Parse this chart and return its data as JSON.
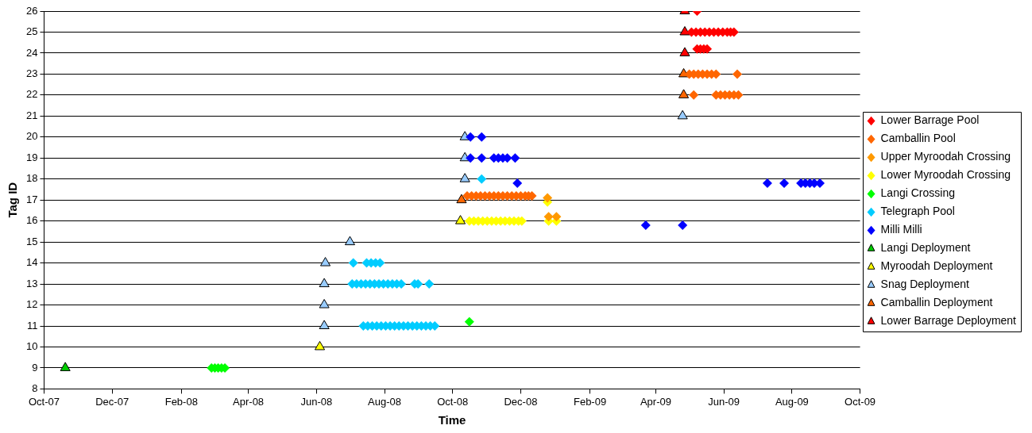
{
  "chart_data": {
    "type": "scatter",
    "xlabel": "Time",
    "ylabel": "Tag ID",
    "xlim": [
      "2007-10-01",
      "2009-10-01"
    ],
    "xticks": [
      {
        "value": "2007-10-01",
        "label": "Oct-07"
      },
      {
        "value": "2007-12-01",
        "label": "Dec-07"
      },
      {
        "value": "2008-02-01",
        "label": "Feb-08"
      },
      {
        "value": "2008-04-01",
        "label": "Apr-08"
      },
      {
        "value": "2008-06-01",
        "label": "Jun-08"
      },
      {
        "value": "2008-08-01",
        "label": "Aug-08"
      },
      {
        "value": "2008-10-01",
        "label": "Oct-08"
      },
      {
        "value": "2008-12-01",
        "label": "Dec-08"
      },
      {
        "value": "2009-02-01",
        "label": "Feb-09"
      },
      {
        "value": "2009-04-01",
        "label": "Apr-09"
      },
      {
        "value": "2009-06-01",
        "label": "Jun-09"
      },
      {
        "value": "2009-08-01",
        "label": "Aug-09"
      },
      {
        "value": "2009-10-01",
        "label": "Oct-09"
      }
    ],
    "ylim": [
      8,
      26
    ],
    "yticks": [
      8,
      9,
      10,
      11,
      12,
      13,
      14,
      15,
      16,
      17,
      18,
      19,
      20,
      21,
      22,
      23,
      24,
      25,
      26
    ],
    "grid": "y",
    "legend": "right",
    "series": [
      {
        "name": "Lower Barrage Pool",
        "color": "#ff0000",
        "marker": "diamond",
        "x": [
          "2009-05-08",
          "2009-05-03",
          "2009-05-07",
          "2009-05-11",
          "2009-05-15",
          "2009-05-19",
          "2009-05-23",
          "2009-05-27",
          "2009-05-31",
          "2009-06-04",
          "2009-06-07",
          "2009-06-10",
          "2009-05-08",
          "2009-05-11",
          "2009-05-14",
          "2009-05-17"
        ],
        "values": [
          26,
          25,
          25,
          25,
          25,
          25,
          25,
          25,
          25,
          25,
          25,
          25,
          24.2,
          24.2,
          24.2,
          24.2
        ]
      },
      {
        "name": "Camballin Pool",
        "color": "#ff6600",
        "marker": "diamond",
        "x": [
          "2008-10-14",
          "2008-10-18",
          "2008-10-22",
          "2008-10-26",
          "2008-10-30",
          "2008-11-03",
          "2008-11-07",
          "2008-11-11",
          "2008-11-15",
          "2008-11-19",
          "2008-11-23",
          "2008-11-27",
          "2008-12-01",
          "2008-12-05",
          "2008-12-08",
          "2008-12-11",
          "2009-05-05",
          "2009-05-25",
          "2009-05-29",
          "2009-06-02",
          "2009-06-06",
          "2009-06-10",
          "2009-06-14",
          "2009-05-01",
          "2009-05-05",
          "2009-05-09",
          "2009-05-13",
          "2009-05-17",
          "2009-05-21",
          "2009-05-25",
          "2009-06-13"
        ],
        "values": [
          17.2,
          17.2,
          17.2,
          17.2,
          17.2,
          17.2,
          17.2,
          17.2,
          17.2,
          17.2,
          17.2,
          17.2,
          17.2,
          17.2,
          17.2,
          17.2,
          22,
          22,
          22,
          22,
          22,
          22,
          22,
          23,
          23,
          23,
          23,
          23,
          23,
          23,
          23
        ]
      },
      {
        "name": "Upper Myroodah Crossing",
        "color": "#ff9900",
        "marker": "diamond",
        "x": [
          "2008-12-25",
          "2008-12-26",
          "2009-01-02"
        ],
        "values": [
          17.1,
          16.2,
          16.2
        ]
      },
      {
        "name": "Lower Myroodah Crossing",
        "color": "#ffff00",
        "marker": "diamond",
        "x": [
          "2008-10-16",
          "2008-10-20",
          "2008-10-24",
          "2008-10-28",
          "2008-11-01",
          "2008-11-05",
          "2008-11-09",
          "2008-11-13",
          "2008-11-17",
          "2008-11-21",
          "2008-11-25",
          "2008-11-29",
          "2008-12-02",
          "2008-12-26",
          "2009-01-02",
          "2008-12-25"
        ],
        "values": [
          16,
          16,
          16,
          16,
          16,
          16,
          16,
          16,
          16,
          16,
          16,
          16,
          16,
          16,
          16,
          16.9
        ]
      },
      {
        "name": "Langi Crossing",
        "color": "#00ff00",
        "marker": "diamond",
        "x": [
          "2008-02-28",
          "2008-03-02",
          "2008-03-05",
          "2008-03-08",
          "2008-03-11",
          "2008-10-16"
        ],
        "values": [
          9,
          9,
          9,
          9,
          9,
          11.2
        ]
      },
      {
        "name": "Telegraph Pool",
        "color": "#00ccff",
        "marker": "diamond",
        "x": [
          "2008-07-04",
          "2008-07-16",
          "2008-07-20",
          "2008-07-24",
          "2008-07-28",
          "2008-07-03",
          "2008-07-07",
          "2008-07-11",
          "2008-07-15",
          "2008-07-19",
          "2008-07-23",
          "2008-07-27",
          "2008-07-31",
          "2008-08-04",
          "2008-08-08",
          "2008-08-12",
          "2008-08-16",
          "2008-08-28",
          "2008-08-31",
          "2008-09-10",
          "2008-07-13",
          "2008-07-17",
          "2008-07-21",
          "2008-07-25",
          "2008-07-29",
          "2008-08-02",
          "2008-08-06",
          "2008-08-10",
          "2008-08-14",
          "2008-08-18",
          "2008-08-22",
          "2008-08-26",
          "2008-08-30",
          "2008-09-03",
          "2008-09-07",
          "2008-09-11",
          "2008-09-15",
          "2008-10-27"
        ],
        "values": [
          14,
          14,
          14,
          14,
          14,
          13,
          13,
          13,
          13,
          13,
          13,
          13,
          13,
          13,
          13,
          13,
          13,
          13,
          13,
          13,
          11,
          11,
          11,
          11,
          11,
          11,
          11,
          11,
          11,
          11,
          11,
          11,
          11,
          11,
          11,
          11,
          11,
          18
        ]
      },
      {
        "name": "Milli Milli",
        "color": "#0000ff",
        "marker": "diamond",
        "x": [
          "2008-10-17",
          "2008-10-27",
          "2008-10-17",
          "2008-10-27",
          "2008-11-07",
          "2008-11-11",
          "2008-11-15",
          "2008-11-19",
          "2008-11-26",
          "2008-11-28",
          "2009-03-23",
          "2009-04-25",
          "2009-07-10",
          "2009-07-25",
          "2009-08-09",
          "2009-08-13",
          "2009-08-17",
          "2009-08-21",
          "2009-08-26"
        ],
        "values": [
          20,
          20,
          19,
          19,
          19,
          19,
          19,
          19,
          19,
          17.8,
          15.8,
          15.8,
          17.8,
          17.8,
          17.8,
          17.8,
          17.8,
          17.8,
          17.8
        ]
      },
      {
        "name": "Langi Deployment",
        "color": "#00cc00",
        "marker": "triangle",
        "x": [
          "2007-10-20"
        ],
        "values": [
          9
        ]
      },
      {
        "name": "Myroodah Deployment",
        "color": "#ffff00",
        "marker": "triangle",
        "x": [
          "2008-06-04",
          "2008-10-08"
        ],
        "values": [
          10,
          16
        ]
      },
      {
        "name": "Snag Deployment",
        "color": "#99ccff",
        "marker": "triangle",
        "x": [
          "2008-06-08",
          "2008-06-08",
          "2008-06-08",
          "2008-06-09",
          "2008-07-01",
          "2008-10-12",
          "2008-10-12",
          "2008-10-12",
          "2009-04-25"
        ],
        "values": [
          11,
          12,
          13,
          14,
          15,
          18,
          19,
          20,
          21
        ]
      },
      {
        "name": "Camballin Deployment",
        "color": "#ff6600",
        "marker": "triangle",
        "x": [
          "2008-10-09",
          "2009-04-26",
          "2009-04-26"
        ],
        "values": [
          17,
          22,
          23
        ]
      },
      {
        "name": "Lower Barrage Deployment",
        "color": "#ff0000",
        "marker": "triangle",
        "x": [
          "2009-04-27",
          "2009-04-27",
          "2009-04-27"
        ],
        "values": [
          24,
          25,
          26
        ]
      }
    ]
  }
}
